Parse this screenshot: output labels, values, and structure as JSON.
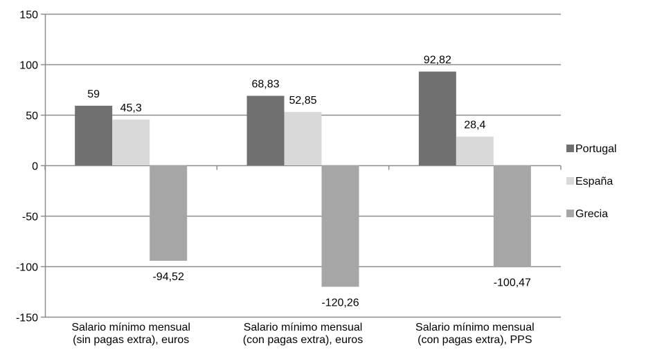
{
  "chart_data": {
    "type": "bar",
    "categories": [
      [
        "Salario mínimo mensual",
        "(sin pagas extra), euros"
      ],
      [
        "Salario mínimo mensual",
        "(con pagas extra), euros"
      ],
      [
        "Salario mínimo mensual",
        "(con pagas extra), PPS"
      ]
    ],
    "series": [
      {
        "name": "Portugal",
        "values": [
          59,
          68.83,
          92.82
        ],
        "labels": [
          "59",
          "68,83",
          "92,82"
        ],
        "color": "#707070"
      },
      {
        "name": "España",
        "values": [
          45.3,
          52.85,
          28.4
        ],
        "labels": [
          "45,3",
          "52,85",
          "28,4"
        ],
        "color": "#d9d9d9"
      },
      {
        "name": "Grecia",
        "values": [
          -94.52,
          -120.26,
          -100.47
        ],
        "labels": [
          "-94,52",
          "-120,26",
          "-100,47"
        ],
        "color": "#a6a6a6"
      }
    ],
    "ylim": [
      -150,
      150
    ],
    "yticks": [
      150,
      100,
      50,
      0,
      -50,
      -100,
      -150
    ],
    "grid": true,
    "gridColor": "#8c8c8c",
    "legend": "right",
    "title": "",
    "xlabel": "",
    "ylabel": ""
  }
}
